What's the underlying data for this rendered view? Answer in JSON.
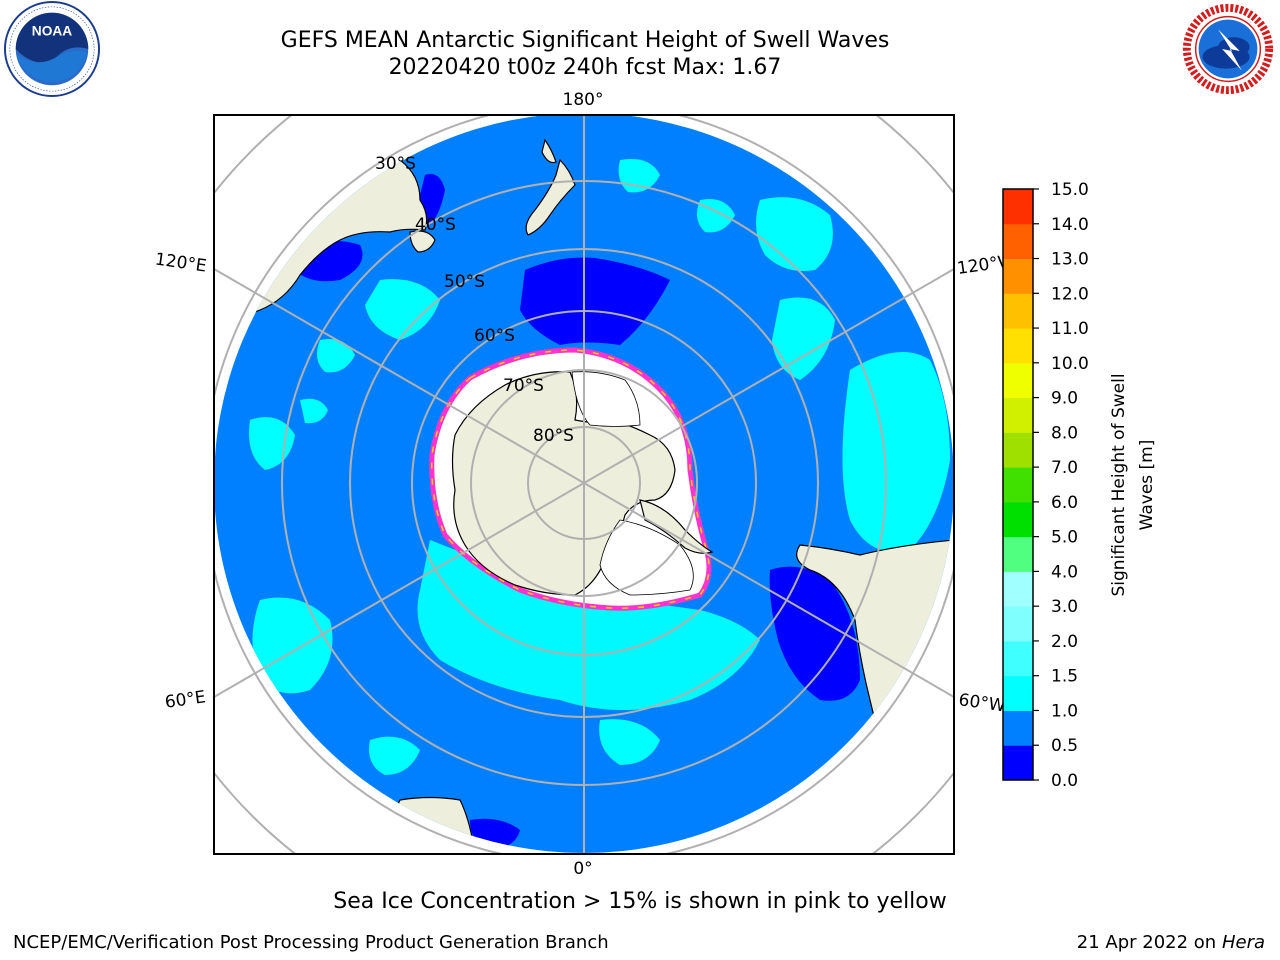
{
  "header": {
    "title_line1": "GEFS MEAN Antarctic Significant Height of Swell Waves",
    "title_line2": "20220420 t00z 240h fcst   Max: 1.67"
  },
  "logos": {
    "left": {
      "text": "NOAA",
      "ring_text": "NATIONAL OCEANIC AND ATMOSPHERIC ADMINISTRATION · U.S. DEPARTMENT OF COMMERCE"
    },
    "right": {
      "ring_text": "NATIONAL WEATHER SERVICE"
    }
  },
  "map": {
    "projection": "south-polar-stereographic",
    "longitude_labels": {
      "top": "180°",
      "bottom": "0°",
      "left_upper": "120°E",
      "left_lower": "60°E",
      "right_upper": "120°W",
      "right_lower": "60°W"
    },
    "latitude_labels": [
      "30°S",
      "40°S",
      "50°S",
      "60°S",
      "70°S",
      "80°S"
    ],
    "colors": {
      "land": "#eeeedc",
      "ocean_0_0.5": "#0000ff",
      "ocean_0.5_1.0": "#0080ff",
      "ocean_1.0_1.5": "#00ffff",
      "ice_edge": "#ff33cc",
      "ice_core": "#ffffff",
      "gridline": "#b0b0b0"
    }
  },
  "colorbar": {
    "label_line1": "Significant Height of Swell",
    "label_line2": "Waves [m]",
    "ticks": [
      "0.0",
      "0.5",
      "1.0",
      "1.5",
      "2.0",
      "3.0",
      "4.0",
      "5.0",
      "6.0",
      "7.0",
      "8.0",
      "9.0",
      "10.0",
      "11.0",
      "12.0",
      "13.0",
      "14.0",
      "15.0"
    ],
    "colors": [
      "#0000ff",
      "#0080ff",
      "#00ffff",
      "#40ffff",
      "#80ffff",
      "#a0ffff",
      "#50ff80",
      "#00e000",
      "#40e000",
      "#a0e000",
      "#d0f000",
      "#f0ff00",
      "#ffe000",
      "#ffc000",
      "#ff9000",
      "#ff6000",
      "#ff3000",
      "#ff0000"
    ]
  },
  "note": "Sea Ice Concentration > 15% is shown in pink to yellow",
  "footer": {
    "left": "NCEP/EMC/Verification Post Processing Product Generation Branch",
    "right_date": "21 Apr 2022 on ",
    "right_machine": "Hera"
  }
}
